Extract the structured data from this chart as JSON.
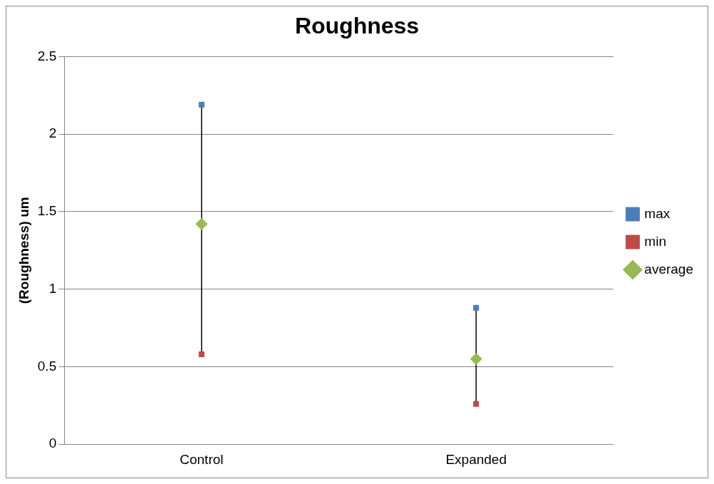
{
  "chart_data": {
    "type": "scatter",
    "title": "Roughness",
    "ylabel": "(Roughness) um",
    "categories": [
      "Control",
      "Expanded"
    ],
    "series": [
      {
        "name": "max",
        "color": "#4a7ebb",
        "marker": "square",
        "values": [
          2.19,
          0.88
        ]
      },
      {
        "name": "min",
        "color": "#be4b48",
        "marker": "square",
        "values": [
          0.58,
          0.26
        ]
      },
      {
        "name": "average",
        "color": "#98b954",
        "marker": "diamond",
        "values": [
          1.42,
          0.55
        ]
      }
    ],
    "ylim": [
      0,
      2.5
    ],
    "yticks": [
      0,
      0.5,
      1,
      1.5,
      2,
      2.5
    ],
    "grid": "y",
    "legend": "right"
  }
}
